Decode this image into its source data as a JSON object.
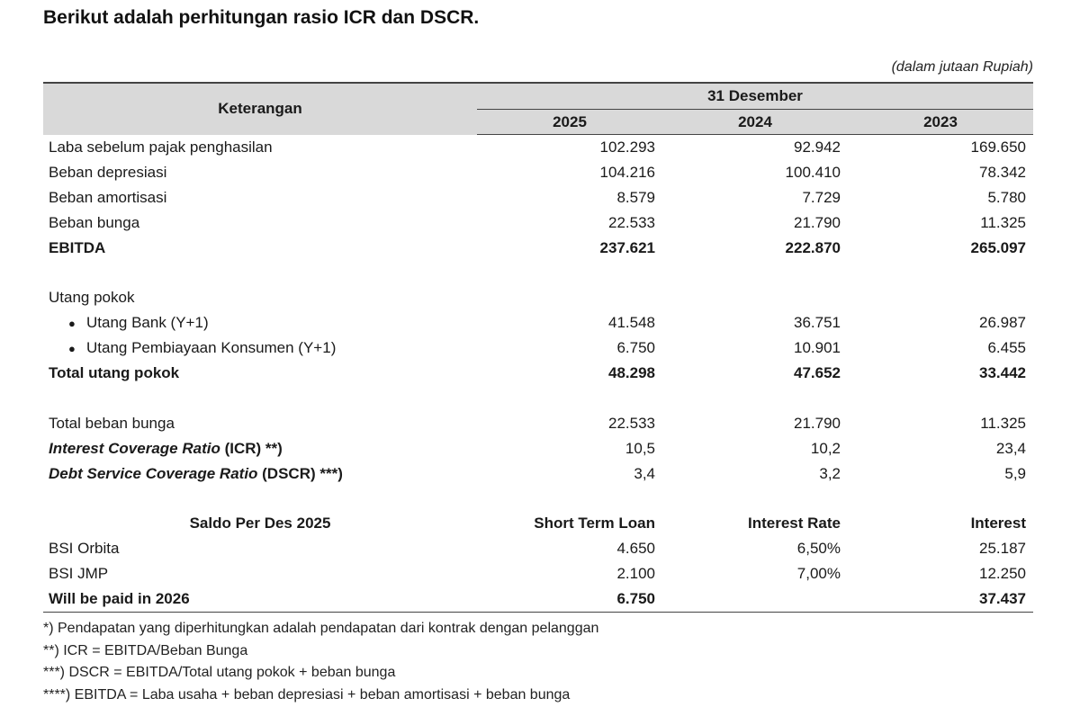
{
  "heading": "Berikut adalah perhitungan rasio ICR dan DSCR.",
  "unit_note": "(dalam jutaan Rupiah)",
  "table": {
    "header_label": "Keterangan",
    "period_label": "31 Desember",
    "years": [
      "2025",
      "2024",
      "2023"
    ],
    "rows": [
      {
        "label": "Laba sebelum pajak penghasilan",
        "values": [
          "102.293",
          "92.942",
          "169.650"
        ]
      },
      {
        "label": "Beban depresiasi",
        "values": [
          "104.216",
          "100.410",
          "78.342"
        ]
      },
      {
        "label": "Beban amortisasi",
        "values": [
          "8.579",
          "7.729",
          "5.780"
        ]
      },
      {
        "label": "Beban bunga",
        "values": [
          "22.533",
          "21.790",
          "11.325"
        ]
      },
      {
        "label": "EBITDA",
        "values": [
          "237.621",
          "222.870",
          "265.097"
        ]
      },
      {
        "label": "Utang pokok"
      },
      {
        "label": "Utang Bank (Y+1)",
        "values": [
          "41.548",
          "36.751",
          "26.987"
        ]
      },
      {
        "label": "Utang Pembiayaan Konsumen (Y+1)",
        "values": [
          "6.750",
          "10.901",
          "6.455"
        ]
      },
      {
        "label": "Total utang pokok",
        "values": [
          "48.298",
          "47.652",
          "33.442"
        ]
      },
      {
        "label": "Total beban bunga",
        "values": [
          "22.533",
          "21.790",
          "11.325"
        ]
      },
      {
        "label_italic": "Interest Coverage Ratio",
        "label_suffix": " (ICR) **)",
        "values": [
          "10,5",
          "10,2",
          "23,4"
        ]
      },
      {
        "label_italic": "Debt Service Coverage Ratio",
        "label_suffix": " (DSCR) ***)",
        "values": [
          "3,4",
          "3,2",
          "5,9"
        ]
      }
    ],
    "loan_header": [
      "Saldo Per Des 2025",
      "Short Term Loan",
      "Interest Rate",
      "Interest"
    ],
    "loan_rows": [
      {
        "label": "BSI Orbita",
        "values": [
          "4.650",
          "6,50%",
          "25.187"
        ]
      },
      {
        "label": "BSI JMP",
        "values": [
          "2.100",
          "7,00%",
          "12.250"
        ]
      },
      {
        "label": "Will be paid in 2026",
        "values": [
          "6.750",
          "",
          "37.437"
        ]
      }
    ]
  },
  "notes": [
    "*) Pendapatan yang diperhitungkan adalah pendapatan dari kontrak dengan pelanggan",
    "**) ICR = EBITDA/Beban Bunga",
    "***) DSCR = EBITDA/Total utang pokok + beban bunga",
    "****) EBITDA = Laba usaha + beban depresiasi + beban amortisasi + beban bunga"
  ]
}
